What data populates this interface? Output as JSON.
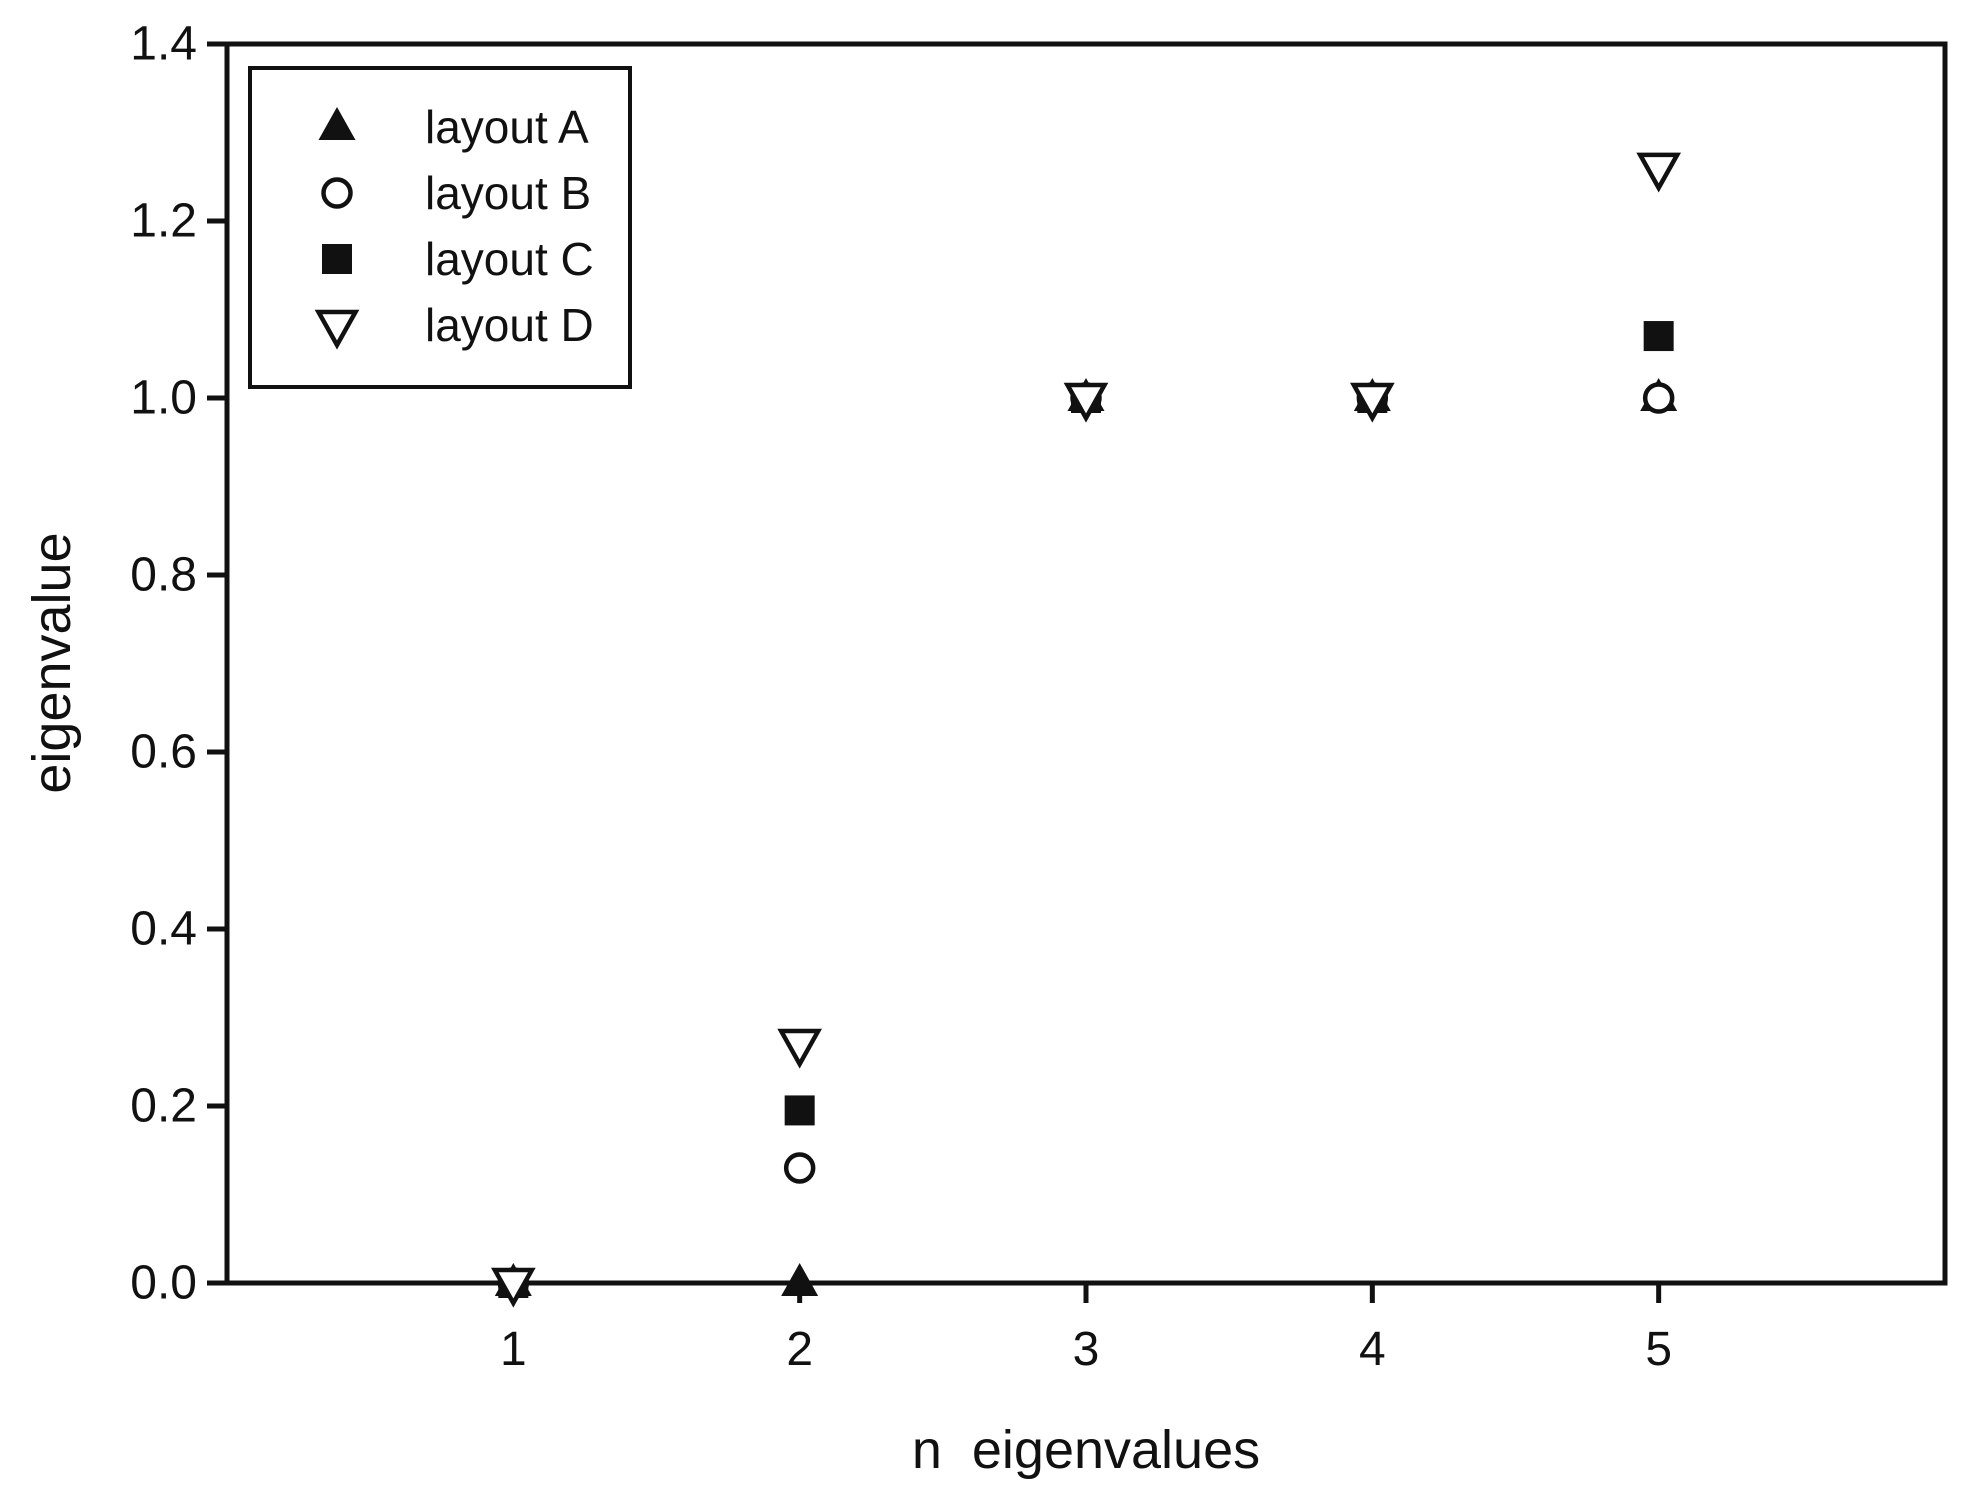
{
  "chart_data": {
    "type": "scatter",
    "title": "",
    "xlabel": "n  eigenvalues",
    "ylabel": "eigenvalue",
    "x": [
      1,
      2,
      3,
      4,
      5
    ],
    "series": [
      {
        "name": "layout A",
        "marker": "triangle-up-filled",
        "values": [
          0.0,
          0.0,
          1.0,
          1.0,
          1.0
        ]
      },
      {
        "name": "layout B",
        "marker": "circle-open",
        "values": [
          0.0,
          0.13,
          1.0,
          1.0,
          1.0
        ]
      },
      {
        "name": "layout C",
        "marker": "square-filled",
        "values": [
          0.0,
          0.195,
          1.0,
          1.0,
          1.07
        ]
      },
      {
        "name": "layout D",
        "marker": "triangle-down-open",
        "values": [
          0.0,
          0.27,
          1.0,
          1.0,
          1.26
        ]
      }
    ],
    "xlim": [
      0,
      6
    ],
    "ylim": [
      0,
      1.4
    ],
    "x_ticks": [
      1,
      2,
      3,
      4,
      5
    ],
    "y_ticks": [
      0.0,
      0.2,
      0.4,
      0.6,
      0.8,
      1.0,
      1.2,
      1.4
    ],
    "y_tick_format_decimals": 1,
    "grid": false,
    "legend": {
      "position": "upper-left",
      "entries": [
        "layout A",
        "layout B",
        "layout C",
        "layout D"
      ]
    },
    "colors": {
      "foreground": "#111111",
      "background": "#ffffff"
    }
  }
}
